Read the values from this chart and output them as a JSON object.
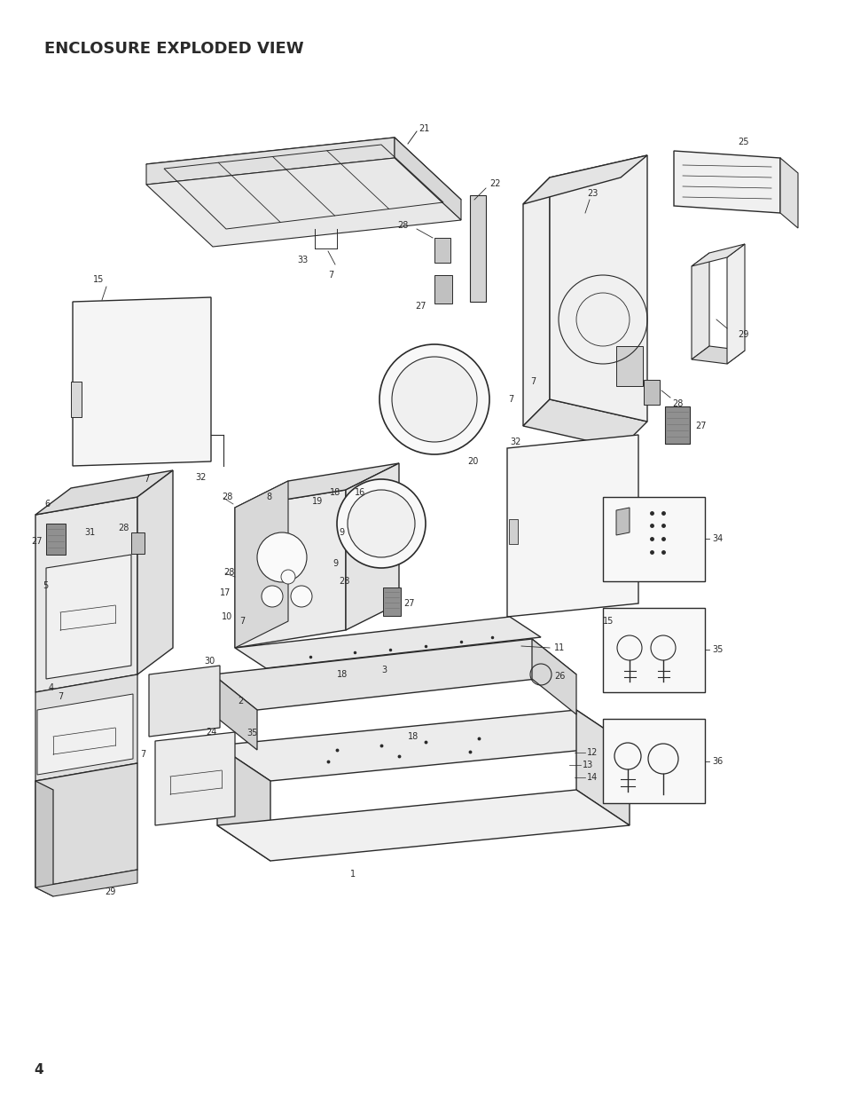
{
  "title": "ENCLOSURE EXPLODED VIEW",
  "page_number": "4",
  "bg": "#ffffff",
  "lc": "#2a2a2a",
  "title_fontsize": 13,
  "lfs": 7.0
}
